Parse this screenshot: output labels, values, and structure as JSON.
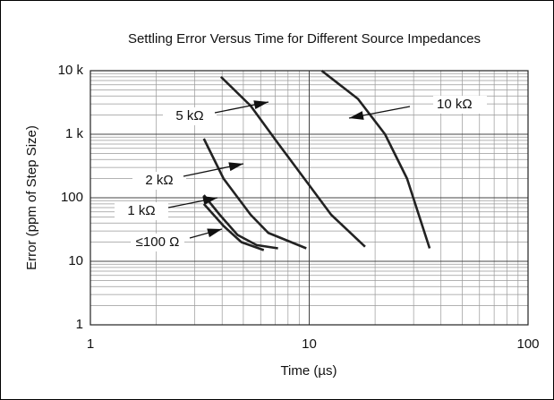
{
  "chart_data": {
    "type": "line",
    "title": "Settling Error Versus Time for Different Source Impedances",
    "x_label": "Time (µs)",
    "y_label": "Error (ppm of Step Size)",
    "xscale": "log",
    "yscale": "log",
    "grid": true,
    "minor_grid": true,
    "xlim": [
      1,
      100
    ],
    "xticks": [
      1,
      10,
      100
    ],
    "ylim": [
      1,
      10000
    ],
    "yticks": [
      1,
      10,
      100,
      {
        "value": 1000,
        "label": "1 k"
      },
      {
        "value": 10000,
        "label": "10 k"
      }
    ],
    "series": [
      {
        "name": "5 kΩ",
        "color": "#222222",
        "x": [
          3.95,
          5.4,
          7.2,
          9.5,
          12.6,
          18
        ],
        "values": [
          8000,
          2800,
          720,
          200,
          54,
          17
        ]
      },
      {
        "name": "10 kΩ",
        "color": "#222222",
        "x": [
          11.4,
          16.7,
          22.2,
          28,
          35.5
        ],
        "values": [
          10000,
          3600,
          1000,
          200,
          16
        ]
      },
      {
        "name": "2 kΩ",
        "color": "#222222",
        "x": [
          3.3,
          4.06,
          5.4,
          6.5,
          9.7
        ],
        "values": [
          850,
          200,
          54,
          28,
          16
        ]
      },
      {
        "name": "1 kΩ",
        "color": "#222222",
        "x": [
          3.3,
          3.9,
          4.7,
          5.75,
          7.2
        ],
        "values": [
          110,
          54,
          26,
          18,
          16
        ]
      },
      {
        "name": "≤100 Ω",
        "color": "#222222",
        "x": [
          3.3,
          4.06,
          4.9,
          6.2
        ],
        "values": [
          80,
          36,
          20,
          15
        ]
      }
    ]
  }
}
